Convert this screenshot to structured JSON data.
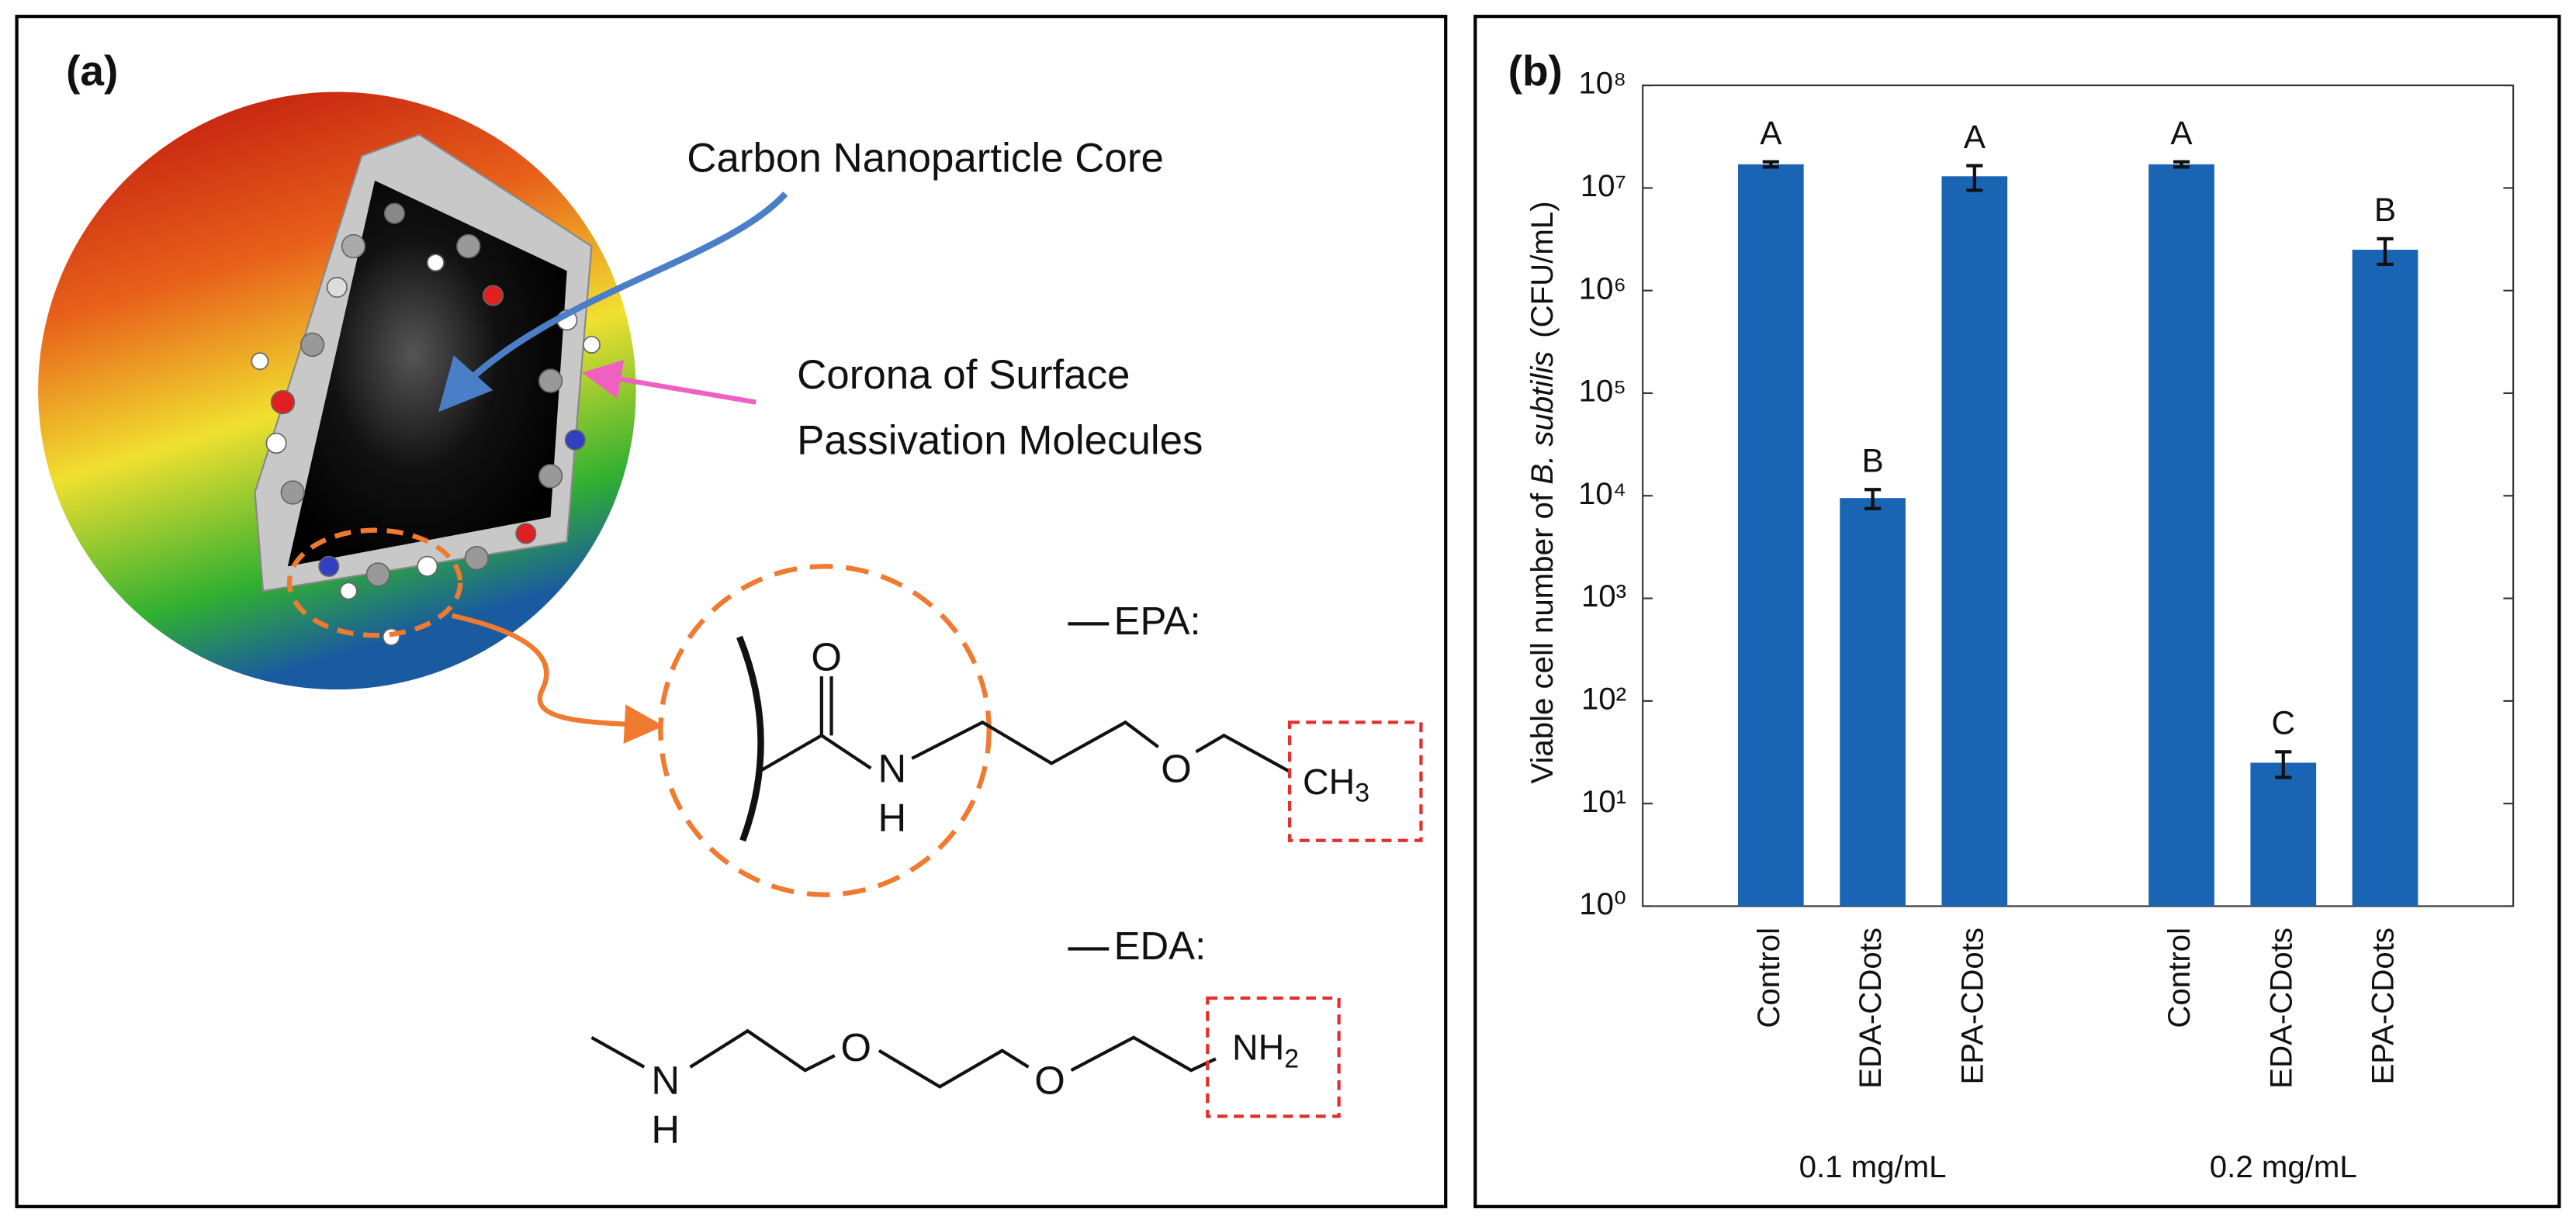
{
  "panel_a": {
    "label": "(a)",
    "core_label": "Carbon Nanoparticle Core",
    "corona_label": [
      "Corona of Surface",
      "Passivation Molecules"
    ],
    "epa_label": "EPA:",
    "eda_label": "EDA:",
    "epa_atoms": [
      "O",
      "N",
      "H",
      "O",
      "CH"
    ],
    "epa_sub": "3",
    "eda_atoms": [
      "N",
      "H",
      "O",
      "O",
      "NH"
    ],
    "eda_sub": "2"
  },
  "chart_data": {
    "type": "bar",
    "panel_label": "(b)",
    "y_label": [
      "Viable cell number of ",
      "B. subtilis",
      "(CFU/mL)"
    ],
    "categories": [
      "Control",
      "EDA-CDots",
      "EPA-CDots",
      "Control",
      "EDA-CDots",
      "EPA-CDots"
    ],
    "groups": [
      "0.1 mg/mL",
      "0.2 mg/mL"
    ],
    "values": [
      17000000,
      9500,
      13000000,
      17000000,
      25,
      2500000
    ],
    "errors": [
      1000000,
      2000,
      3500000,
      1000000,
      7,
      700000
    ],
    "annotations": [
      "A",
      "B",
      "A",
      "A",
      "C",
      "B"
    ],
    "color": "#1a64b4",
    "log_scale": true,
    "grid": false,
    "ylim": [
      1,
      100000000
    ],
    "yticks": [
      {
        "value": 1,
        "label": "10⁰"
      },
      {
        "value": 10,
        "label": "10¹"
      },
      {
        "value": 100,
        "label": "10²"
      },
      {
        "value": 1000,
        "label": "10³"
      },
      {
        "value": 10000,
        "label": "10⁴"
      },
      {
        "value": 100000,
        "label": "10⁵"
      },
      {
        "value": 1000000,
        "label": "10⁶"
      },
      {
        "value": 10000000,
        "label": "10⁷"
      },
      {
        "value": 100000000,
        "label": "10⁸"
      }
    ]
  }
}
